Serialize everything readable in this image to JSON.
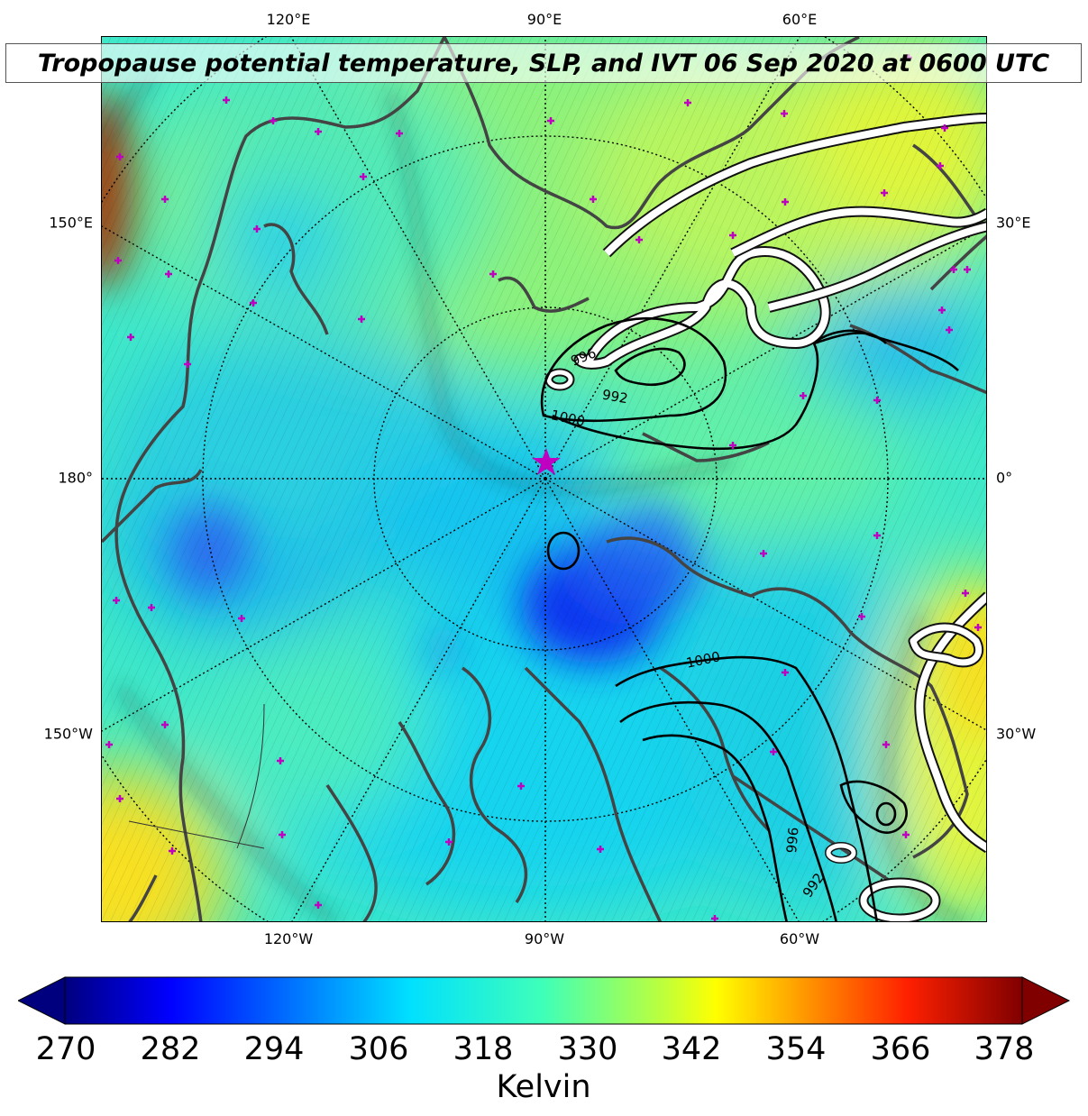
{
  "title": "Tropopause potential temperature, SLP, and IVT 06 Sep 2020 at 0600 UTC",
  "axis_labels": {
    "top": [
      "120°E",
      "90°E",
      "60°E"
    ],
    "bottom": [
      "120°W",
      "90°W",
      "60°W"
    ],
    "left": [
      "150°E",
      "180°",
      "150°W"
    ],
    "right": [
      "30°E",
      "0°",
      "30°W"
    ]
  },
  "slp_contour_labels": [
    "996",
    "992",
    "1000",
    "1000",
    "996",
    "992"
  ],
  "colorbar": {
    "label": "Kelvin",
    "ticks": [
      "270",
      "282",
      "294",
      "306",
      "318",
      "330",
      "342",
      "354",
      "366",
      "378"
    ],
    "colormap": "jet",
    "range": [
      270,
      378
    ]
  },
  "colors": {
    "coastline": "#444444",
    "slp_contour": "#000000",
    "ivt_contour": "#ffffff",
    "marker": "#c000c0"
  },
  "markers": {
    "pole_star": "star",
    "stations": "plus"
  }
}
